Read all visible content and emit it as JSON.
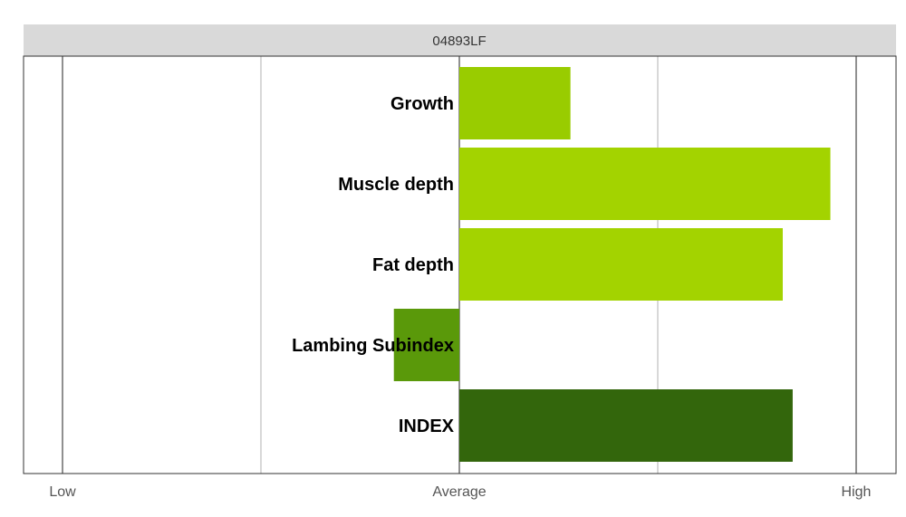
{
  "chart_data": {
    "type": "bar",
    "orientation": "horizontal",
    "title": "04893LF",
    "categories": [
      "Growth",
      "Muscle depth",
      "Fat depth",
      "Lambing Subindex",
      "INDEX"
    ],
    "values": [
      0.28,
      0.935,
      0.815,
      -0.165,
      0.84
    ],
    "colors": [
      "#99cc00",
      "#a3d300",
      "#a3d300",
      "#5a990a",
      "#33660c"
    ],
    "xlim": [
      -1,
      1
    ],
    "ticks": [
      {
        "value": -1,
        "label": "Low"
      },
      {
        "value": 0,
        "label": "Average"
      },
      {
        "value": 1,
        "label": "High"
      }
    ],
    "minor_ticks": [
      -0.5,
      0.5
    ],
    "grid": true,
    "legend": "none"
  },
  "colors": {
    "strip_bg": "#d9d9d9",
    "panel_border": "#333333",
    "major_grid": "#555555",
    "minor_grid": "#b0b0b0"
  }
}
